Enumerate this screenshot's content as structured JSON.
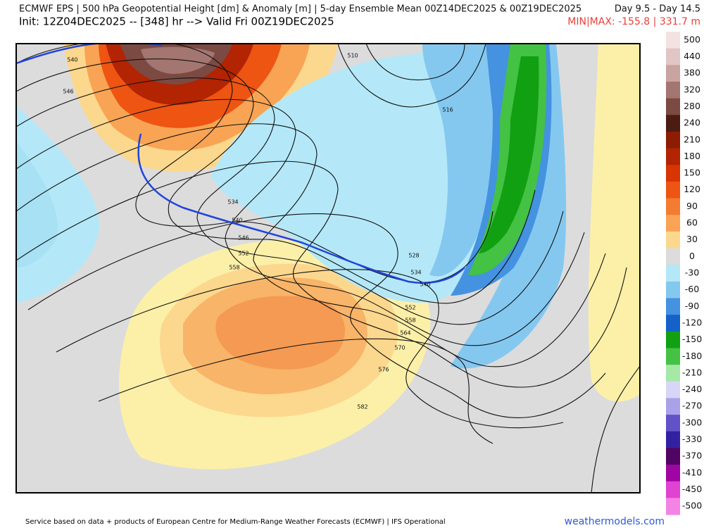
{
  "header": {
    "title": "ECMWF EPS | 500 hPa Geopotential Height [dm] & Anomaly [m] | 5-day Ensemble Mean 00Z14DEC2025 & 00Z19DEC2025",
    "days": "Day 9.5 - Day 14.5",
    "init": "Init: 12Z04DEC2025 -- [348] hr --> Valid Fri 00Z19DEC2025",
    "minmax": "MIN|MAX: -155.8 | 331.7 m"
  },
  "map": {
    "contour_labels": [
      "540",
      "546",
      "510",
      "516",
      "534",
      "540",
      "546",
      "552",
      "558",
      "528",
      "534",
      "540",
      "552",
      "558",
      "564",
      "570",
      "576",
      "582"
    ]
  },
  "colorbar": {
    "ticks": [
      500,
      440,
      380,
      320,
      280,
      240,
      210,
      180,
      150,
      120,
      90,
      60,
      30,
      0,
      -30,
      -60,
      -90,
      -120,
      -150,
      -180,
      -210,
      -240,
      -270,
      -300,
      -330,
      -370,
      -410,
      -450,
      -500
    ],
    "colors": [
      "#f4e2e2",
      "#e2c6c6",
      "#c9a3a0",
      "#a47672",
      "#7b4a42",
      "#4a1c12",
      "#8c1c02",
      "#b22402",
      "#d83404",
      "#ee5412",
      "#f47c32",
      "#f8a454",
      "#fcd88e",
      "#dcdcdc",
      "#b4e8f8",
      "#84c8f0",
      "#4492e0",
      "#1462c8",
      "#10a012",
      "#44c244",
      "#a6e8a6",
      "#d8d6f6",
      "#aaa2e8",
      "#6252c8",
      "#3222a2",
      "#520462",
      "#a004a2",
      "#e042d2",
      "#f484e4"
    ]
  },
  "footer": {
    "credit": "Service based on data + products of European Centre for Medium-Range Weather Forecasts (ECMWF) | IFS Operational",
    "site": "weathermodels.com"
  }
}
